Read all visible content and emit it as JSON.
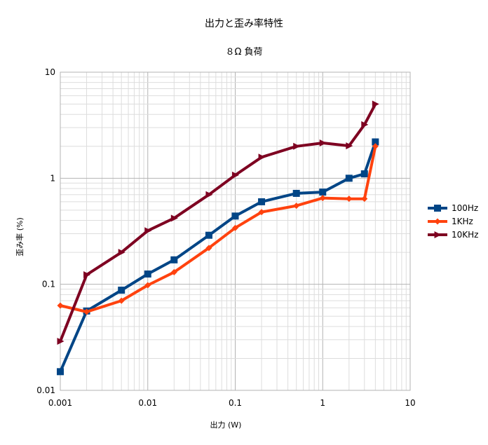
{
  "chart_data": {
    "type": "line",
    "title": "出力と歪み率特性",
    "subtitle": "８Ω 負荷",
    "xlabel": "出力 (W)",
    "ylabel": "歪み率 (%)",
    "xscale": "log",
    "yscale": "log",
    "xlim": [
      0.001,
      10
    ],
    "ylim": [
      0.01,
      10
    ],
    "xticks": [
      "0.001",
      "0.01",
      "0.1",
      "1",
      "10"
    ],
    "yticks": [
      "0.01",
      "0.1",
      "1",
      "10"
    ],
    "grid": true,
    "legend_position": "right",
    "series": [
      {
        "name": "100Hz",
        "color": "#004586",
        "marker": "square",
        "x": [
          0.001,
          0.002,
          0.005,
          0.01,
          0.02,
          0.05,
          0.1,
          0.2,
          0.5,
          1,
          2,
          3,
          4
        ],
        "y": [
          0.015,
          0.056,
          0.088,
          0.125,
          0.17,
          0.29,
          0.44,
          0.6,
          0.72,
          0.74,
          1.0,
          1.1,
          2.2
        ]
      },
      {
        "name": "1KHz",
        "color": "#ff420e",
        "marker": "diamond",
        "x": [
          0.001,
          0.002,
          0.005,
          0.01,
          0.02,
          0.05,
          0.1,
          0.2,
          0.5,
          1,
          2,
          3,
          4
        ],
        "y": [
          0.063,
          0.055,
          0.07,
          0.098,
          0.13,
          0.22,
          0.34,
          0.48,
          0.55,
          0.65,
          0.64,
          0.64,
          2.0
        ]
      },
      {
        "name": "10KHz",
        "color": "#7e0021",
        "marker": "triangle-right",
        "x": [
          0.001,
          0.002,
          0.005,
          0.01,
          0.02,
          0.05,
          0.1,
          0.2,
          0.5,
          1,
          2,
          3,
          4
        ],
        "y": [
          0.029,
          0.123,
          0.2,
          0.32,
          0.42,
          0.7,
          1.07,
          1.58,
          2.0,
          2.15,
          2.02,
          3.2,
          5.0
        ]
      }
    ]
  }
}
